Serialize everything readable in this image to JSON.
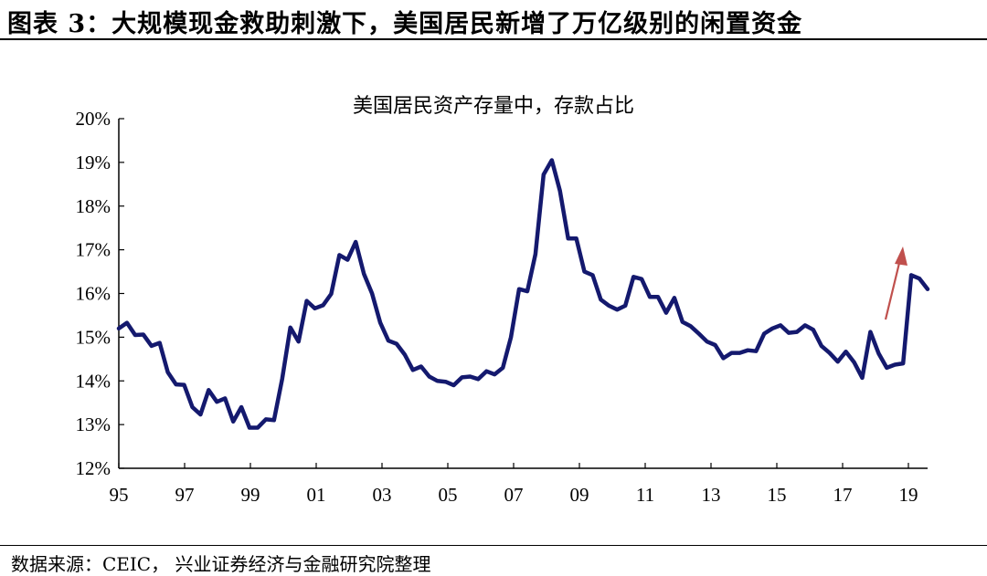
{
  "figure_title": "图表 3：大规模现金救助刺激下，美国居民新增了万亿级别的闲置资金",
  "source": "数据来源：CEIC， 兴业证券经济与金融研究院整理",
  "colors": {
    "line": "#14196e",
    "arrow": "#c0504d"
  },
  "chart_data": {
    "type": "line",
    "title": "美国居民资产存量中，存款占比",
    "xlabel": "",
    "ylabel": "",
    "ylim": [
      12,
      20
    ],
    "yticks": [
      "12%",
      "13%",
      "14%",
      "15%",
      "16%",
      "17%",
      "18%",
      "19%",
      "20%"
    ],
    "xlim": [
      1995.0,
      2019.75
    ],
    "xticks": [
      "95",
      "97",
      "99",
      "01",
      "03",
      "05",
      "07",
      "09",
      "11",
      "13",
      "15",
      "17",
      "19"
    ],
    "grid": false,
    "legend": "none",
    "annotation": "upward red arrow near 2019",
    "series": [
      {
        "x": [
          1995.0,
          1995.25,
          1995.5,
          1995.75,
          1996.0,
          1996.25,
          1996.5,
          1996.75,
          1997.0,
          1997.25,
          1997.5,
          1997.75,
          1998.0,
          1998.25,
          1998.5,
          1998.75,
          1999.0,
          1999.25,
          1999.5,
          1999.75,
          2000.0,
          2000.25,
          2000.5,
          2000.75,
          2001.0,
          2001.25,
          2001.5,
          2001.75,
          2002.0,
          2002.25,
          2002.5,
          2002.75,
          2003.0,
          2003.25,
          2003.5,
          2003.75,
          2004.0,
          2004.25,
          2004.5,
          2004.75,
          2005.0,
          2005.25,
          2005.5,
          2005.75,
          2006.0,
          2006.25,
          2006.5,
          2006.75,
          2007.0,
          2007.25,
          2007.5,
          2007.75,
          2008.0,
          2008.25,
          2008.5,
          2008.75,
          2009.0,
          2009.25,
          2009.5,
          2009.75,
          2010.0,
          2010.25,
          2010.5,
          2010.75,
          2011.0,
          2011.25,
          2011.5,
          2011.75,
          2012.0,
          2012.25,
          2012.5,
          2012.75,
          2013.0,
          2013.25,
          2013.5,
          2013.75,
          2014.0,
          2014.25,
          2014.5,
          2014.75,
          2015.0,
          2015.25,
          2015.5,
          2015.75,
          2016.0,
          2016.25,
          2016.5,
          2016.75,
          2017.0,
          2017.25,
          2017.5,
          2017.75,
          2018.0,
          2018.25,
          2018.5,
          2018.75,
          2019.0,
          2019.25,
          2019.5,
          2019.75
        ],
        "values": [
          15.2,
          15.33,
          15.05,
          15.06,
          14.8,
          14.87,
          14.2,
          13.92,
          13.91,
          13.4,
          13.23,
          13.79,
          13.52,
          13.6,
          13.07,
          13.4,
          12.93,
          12.93,
          13.12,
          13.1,
          14.05,
          15.22,
          14.9,
          15.83,
          15.66,
          15.73,
          15.99,
          16.88,
          16.77,
          17.18,
          16.45,
          16.0,
          15.33,
          14.92,
          14.85,
          14.6,
          14.25,
          14.33,
          14.1,
          14.0,
          13.98,
          13.9,
          14.08,
          14.1,
          14.04,
          14.22,
          14.15,
          14.3,
          15.0,
          16.1,
          16.05,
          16.9,
          18.72,
          19.05,
          18.35,
          17.26,
          17.26,
          16.5,
          16.42,
          15.86,
          15.72,
          15.63,
          15.72,
          16.38,
          16.33,
          15.92,
          15.92,
          15.56,
          15.9,
          15.35,
          15.25,
          15.08,
          14.9,
          14.82,
          14.52,
          14.64,
          14.64,
          14.7,
          14.68,
          15.08,
          15.2,
          15.27,
          15.1,
          15.12,
          15.27,
          15.17,
          14.8,
          14.64,
          14.44,
          14.67,
          14.43,
          14.07,
          15.12,
          14.63,
          14.3,
          14.37,
          14.4,
          16.42,
          16.34,
          16.1
        ]
      }
    ]
  }
}
